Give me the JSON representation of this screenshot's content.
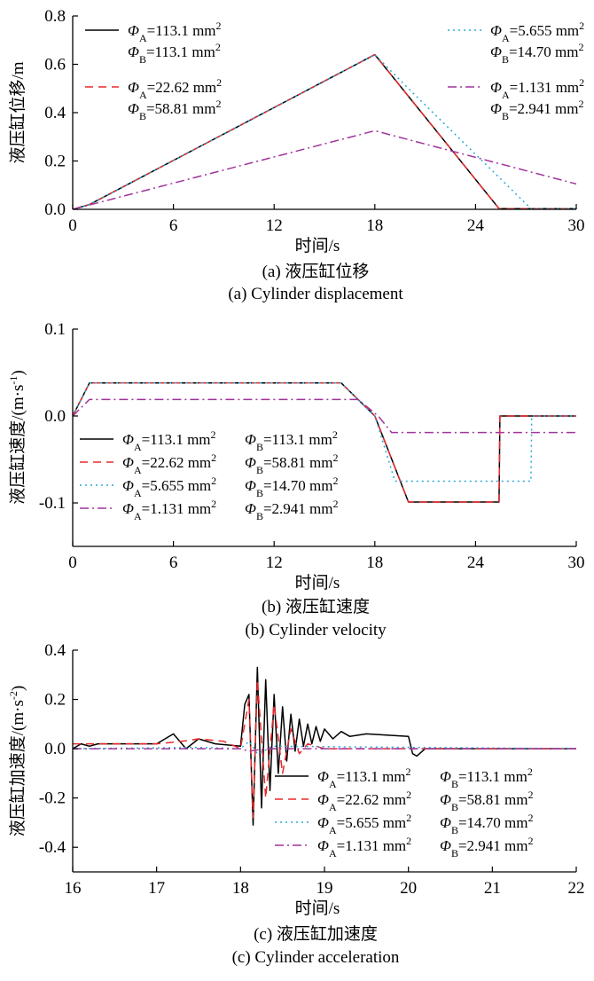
{
  "chart_data": [
    {
      "type": "line",
      "panel": "a",
      "xlabel": "时间/s",
      "ylabel": "液压缸位移/m",
      "xlim": [
        0,
        30
      ],
      "ylim": [
        0,
        0.8
      ],
      "xticks": [
        0,
        6,
        12,
        18,
        24,
        30
      ],
      "yticks": [
        0.0,
        0.2,
        0.4,
        0.6,
        0.8
      ],
      "xtick_labels": [
        "0",
        "6",
        "12",
        "18",
        "24",
        "30"
      ],
      "ytick_labels": [
        "0.0",
        "0.2",
        "0.4",
        "0.6",
        "0.8"
      ],
      "caption_cn": "(a)  液压缸位移",
      "caption_en": "(a)  Cylinder displacement",
      "legend_position": "top (split left and right)",
      "series": [
        {
          "name_a": "=113.1 mm",
          "name_b": "=113.1 mm",
          "style": "solid",
          "color": "#000000",
          "points": [
            [
              0,
              0
            ],
            [
              1,
              0.02
            ],
            [
              18,
              0.64
            ],
            [
              25.4,
              0.003
            ],
            [
              30,
              0.003
            ]
          ]
        },
        {
          "name_a": "=22.62 mm",
          "name_b": "=58.81 mm",
          "style": "dash",
          "color": "#e8292b",
          "points": [
            [
              0,
              0
            ],
            [
              1,
              0.02
            ],
            [
              18,
              0.64
            ],
            [
              25.4,
              0.003
            ],
            [
              30,
              0.003
            ]
          ]
        },
        {
          "name_a": "=5.655 mm",
          "name_b": "=14.70 mm",
          "style": "dot",
          "color": "#2aa8d8",
          "points": [
            [
              0,
              0
            ],
            [
              1,
              0.02
            ],
            [
              18,
              0.64
            ],
            [
              20,
              0.5
            ],
            [
              27.3,
              0.003
            ],
            [
              30,
              0.003
            ]
          ]
        },
        {
          "name_a": "=1.131 mm",
          "name_b": "=2.941 mm",
          "style": "dashdot",
          "color": "#a0349c",
          "points": [
            [
              0,
              0
            ],
            [
              18,
              0.325
            ],
            [
              30,
              0.105
            ]
          ]
        }
      ]
    },
    {
      "type": "line",
      "panel": "b",
      "xlabel": "时间/s",
      "ylabel": "液压缸速度/(m·s",
      "ylabel_sup": "-1",
      "ylabel_end": ")",
      "xlim": [
        0,
        30
      ],
      "ylim": [
        -0.15,
        0.1
      ],
      "xticks": [
        0,
        6,
        12,
        18,
        24,
        30
      ],
      "yticks": [
        -0.1,
        0.0,
        0.1
      ],
      "xtick_labels": [
        "0",
        "6",
        "12",
        "18",
        "24",
        "30"
      ],
      "ytick_labels": [
        "-0.1",
        "0.0",
        "0.1"
      ],
      "caption_cn": "(b)  液压缸速度",
      "caption_en": "(b)  Cylinder velocity",
      "legend_position": "lower-left",
      "series": [
        {
          "name_a": "=113.1 mm",
          "name_b": "=113.1 mm",
          "style": "solid",
          "color": "#000000",
          "points": [
            [
              0,
              0
            ],
            [
              1,
              0.038
            ],
            [
              16,
              0.038
            ],
            [
              18,
              0.0
            ],
            [
              20,
              -0.099
            ],
            [
              25.4,
              -0.099
            ],
            [
              25.45,
              0
            ],
            [
              30,
              0
            ]
          ]
        },
        {
          "name_a": "=22.62 mm",
          "name_b": "=58.81 mm",
          "style": "dash",
          "color": "#e8292b",
          "points": [
            [
              0,
              0
            ],
            [
              1,
              0.038
            ],
            [
              16,
              0.038
            ],
            [
              18,
              0.0
            ],
            [
              20,
              -0.099
            ],
            [
              25.4,
              -0.099
            ],
            [
              25.45,
              0
            ],
            [
              30,
              0
            ]
          ]
        },
        {
          "name_a": "=5.655 mm",
          "name_b": "=14.70 mm",
          "style": "dot",
          "color": "#2aa8d8",
          "points": [
            [
              0,
              0
            ],
            [
              1,
              0.038
            ],
            [
              16,
              0.038
            ],
            [
              18,
              0.0
            ],
            [
              19.2,
              -0.075
            ],
            [
              27.3,
              -0.075
            ],
            [
              27.35,
              0
            ],
            [
              30,
              0
            ]
          ]
        },
        {
          "name_a": "=1.131 mm",
          "name_b": "=2.941 mm",
          "style": "dashdot",
          "color": "#a0349c",
          "points": [
            [
              0,
              0
            ],
            [
              1,
              0.019
            ],
            [
              17,
              0.019
            ],
            [
              18.2,
              0.0
            ],
            [
              19,
              -0.019
            ],
            [
              30,
              -0.019
            ]
          ]
        }
      ]
    },
    {
      "type": "line",
      "panel": "c",
      "xlabel": "时间/s",
      "ylabel": "液压缸加速度/(m·s",
      "ylabel_sup": "-2",
      "ylabel_end": ")",
      "xlim": [
        16,
        22
      ],
      "ylim": [
        -0.5,
        0.4
      ],
      "xticks": [
        16,
        17,
        18,
        19,
        20,
        21,
        22
      ],
      "yticks": [
        -0.4,
        -0.2,
        0.0,
        0.2,
        0.4
      ],
      "xtick_labels": [
        "16",
        "17",
        "18",
        "19",
        "20",
        "21",
        "22"
      ],
      "ytick_labels": [
        "-0.4",
        "-0.2",
        "0.0",
        "0.2",
        "0.4"
      ],
      "caption_cn": "(c)  液压缸加速度",
      "caption_en": "(c)  Cylinder acceleration",
      "legend_position": "lower-right",
      "series": [
        {
          "name_a": "=113.1 mm",
          "name_b": "=113.1 mm",
          "style": "solid",
          "color": "#000000",
          "points": [
            [
              16,
              0
            ],
            [
              16.1,
              0.02
            ],
            [
              16.2,
              0.01
            ],
            [
              16.3,
              0.02
            ],
            [
              16.5,
              0.02
            ],
            [
              17,
              0.02
            ],
            [
              17.2,
              0.06
            ],
            [
              17.35,
              0.0
            ],
            [
              17.5,
              0.04
            ],
            [
              17.7,
              0.02
            ],
            [
              18.0,
              0.01
            ],
            [
              18.05,
              0.18
            ],
            [
              18.1,
              0.22
            ],
            [
              18.15,
              -0.31
            ],
            [
              18.2,
              0.33
            ],
            [
              18.25,
              -0.24
            ],
            [
              18.3,
              0.28
            ],
            [
              18.35,
              -0.17
            ],
            [
              18.4,
              0.22
            ],
            [
              18.45,
              -0.1
            ],
            [
              18.5,
              0.17
            ],
            [
              18.55,
              -0.05
            ],
            [
              18.6,
              0.14
            ],
            [
              18.65,
              -0.01
            ],
            [
              18.7,
              0.12
            ],
            [
              18.75,
              0.01
            ],
            [
              18.8,
              0.1
            ],
            [
              18.85,
              0.02
            ],
            [
              18.9,
              0.09
            ],
            [
              18.95,
              0.03
            ],
            [
              19.0,
              0.08
            ],
            [
              19.1,
              0.04
            ],
            [
              19.2,
              0.07
            ],
            [
              19.3,
              0.05
            ],
            [
              19.5,
              0.06
            ],
            [
              20.0,
              0.05
            ],
            [
              20.05,
              -0.02
            ],
            [
              20.1,
              -0.03
            ],
            [
              20.2,
              0.0
            ],
            [
              20.4,
              0.0
            ],
            [
              22,
              0.0
            ]
          ]
        },
        {
          "name_a": "=22.62 mm",
          "name_b": "=58.81 mm",
          "style": "dash",
          "color": "#e8292b",
          "points": [
            [
              16,
              0.02
            ],
            [
              17.0,
              0.02
            ],
            [
              17.3,
              0.03
            ],
            [
              17.5,
              0.04
            ],
            [
              17.8,
              0.03
            ],
            [
              18.0,
              0.0
            ],
            [
              18.1,
              0.2
            ],
            [
              18.15,
              -0.28
            ],
            [
              18.2,
              0.28
            ],
            [
              18.3,
              -0.2
            ],
            [
              18.4,
              0.18
            ],
            [
              18.5,
              -0.1
            ],
            [
              18.6,
              0.08
            ],
            [
              18.7,
              -0.02
            ],
            [
              18.8,
              0.02
            ],
            [
              19.0,
              0.0
            ],
            [
              22,
              0.0
            ]
          ]
        },
        {
          "name_a": "=5.655 mm",
          "name_b": "=14.70 mm",
          "style": "dot",
          "color": "#2aa8d8",
          "points": [
            [
              16,
              0
            ],
            [
              17.5,
              0.005
            ],
            [
              18.0,
              0.0
            ],
            [
              18.1,
              0.03
            ],
            [
              18.2,
              -0.02
            ],
            [
              18.4,
              0.01
            ],
            [
              22,
              0
            ]
          ]
        },
        {
          "name_a": "=1.131 mm",
          "name_b": "=2.941 mm",
          "style": "dashdot",
          "color": "#a0349c",
          "points": [
            [
              16,
              0
            ],
            [
              18.0,
              0.0
            ],
            [
              18.1,
              -0.01
            ],
            [
              18.3,
              0.0
            ],
            [
              22,
              0.0
            ]
          ]
        }
      ]
    }
  ],
  "legend_symbols": {
    "phi": "Φ",
    "sub_a": "A",
    "sub_b": "B",
    "sup": "2"
  }
}
